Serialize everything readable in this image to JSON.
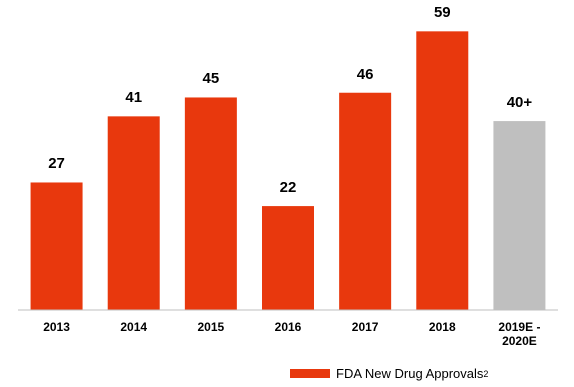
{
  "chart_data": {
    "type": "bar",
    "categories": [
      "2013",
      "2014",
      "2015",
      "2016",
      "2017",
      "2018",
      "2019E -\n2020E"
    ],
    "values": [
      27,
      41,
      45,
      22,
      46,
      59,
      40
    ],
    "value_labels": [
      "27",
      "41",
      "45",
      "22",
      "46",
      "59",
      "40+"
    ],
    "colors": [
      "#e8380d",
      "#e8380d",
      "#e8380d",
      "#e8380d",
      "#e8380d",
      "#e8380d",
      "#bfbfbf"
    ],
    "ylim": [
      0,
      65
    ],
    "legend": {
      "label": "FDA New Drug Approvals",
      "footnote": "2",
      "color": "#e8380d",
      "position": "bottom-right"
    }
  }
}
